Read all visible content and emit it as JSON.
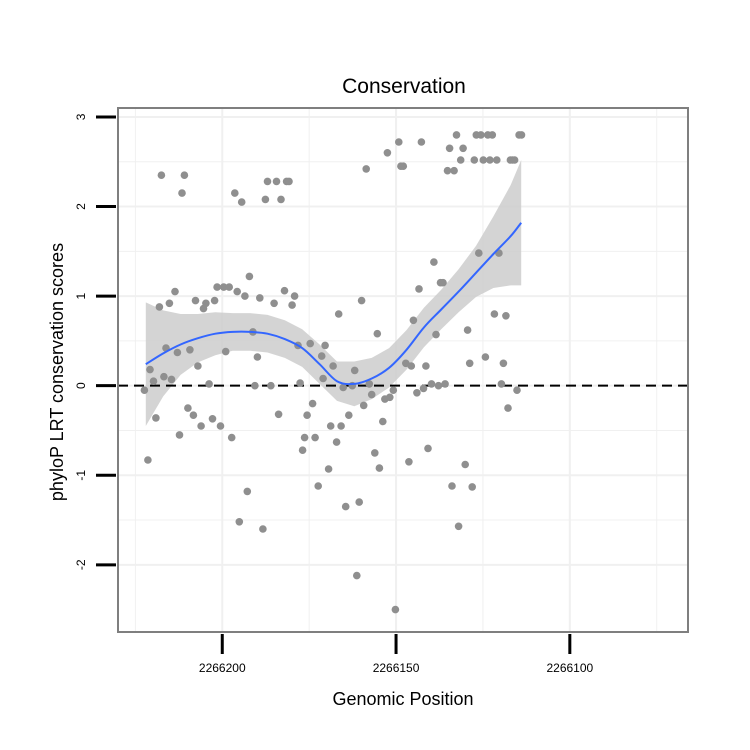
{
  "chart_data": {
    "type": "scatter",
    "title": "Conservation",
    "xlabel": "Genomic Position",
    "ylabel": "phyloP LRT conservation scores",
    "x_reversed": true,
    "xlim": [
      2266230,
      2266066
    ],
    "ylim": [
      -2.75,
      3.1
    ],
    "x_ticks": [
      2266200,
      2266150,
      2266100
    ],
    "x_tick_labels": [
      "2266200",
      "2266150",
      "2266100"
    ],
    "y_ticks": [
      -2,
      -1,
      0,
      1,
      2,
      3
    ],
    "y_tick_labels": [
      "-2",
      "-1",
      "0",
      "1",
      "2",
      "3"
    ],
    "grid": true,
    "reference_line": {
      "y": 0,
      "style": "dashed",
      "color": "#000000"
    },
    "colors": {
      "points": "#8f8f8f",
      "smooth": "#3366ff",
      "ribbon": "#cccccc",
      "grid": "#f0f0f0",
      "panel_border": "#7f7f7f",
      "axis_tick": "#000000"
    },
    "points": [
      {
        "x": 2266222.4,
        "y": -0.05
      },
      {
        "x": 2266221.4,
        "y": -0.83
      },
      {
        "x": 2266220.8,
        "y": 0.18
      },
      {
        "x": 2266219.8,
        "y": 0.05
      },
      {
        "x": 2266219.1,
        "y": -0.36
      },
      {
        "x": 2266218.1,
        "y": 0.88
      },
      {
        "x": 2266217.5,
        "y": 2.35
      },
      {
        "x": 2266216.8,
        "y": 0.1
      },
      {
        "x": 2266216.2,
        "y": 0.42
      },
      {
        "x": 2266215.2,
        "y": 0.92
      },
      {
        "x": 2266214.6,
        "y": 0.07
      },
      {
        "x": 2266213.6,
        "y": 1.05
      },
      {
        "x": 2266212.9,
        "y": 0.37
      },
      {
        "x": 2266212.3,
        "y": -0.55
      },
      {
        "x": 2266211.6,
        "y": 2.15
      },
      {
        "x": 2266210.9,
        "y": 2.35
      },
      {
        "x": 2266209.9,
        "y": -0.25
      },
      {
        "x": 2266209.3,
        "y": 0.4
      },
      {
        "x": 2266208.3,
        "y": -0.33
      },
      {
        "x": 2266207.7,
        "y": 0.95
      },
      {
        "x": 2266207,
        "y": 0.22
      },
      {
        "x": 2266206.1,
        "y": -0.45
      },
      {
        "x": 2266205.4,
        "y": 0.86
      },
      {
        "x": 2266204.7,
        "y": 0.92
      },
      {
        "x": 2266203.8,
        "y": 0.02
      },
      {
        "x": 2266202.8,
        "y": -0.37
      },
      {
        "x": 2266202.2,
        "y": 0.95
      },
      {
        "x": 2266201.5,
        "y": 1.1
      },
      {
        "x": 2266200.5,
        "y": -0.45
      },
      {
        "x": 2266199.6,
        "y": 1.1
      },
      {
        "x": 2266199,
        "y": 0.38
      },
      {
        "x": 2266198,
        "y": 1.1
      },
      {
        "x": 2266197.3,
        "y": -0.58
      },
      {
        "x": 2266196.4,
        "y": 2.15
      },
      {
        "x": 2266195.7,
        "y": 1.05
      },
      {
        "x": 2266195.1,
        "y": -1.52
      },
      {
        "x": 2266194.4,
        "y": 2.05
      },
      {
        "x": 2266193.5,
        "y": 1.0
      },
      {
        "x": 2266192.8,
        "y": -1.18
      },
      {
        "x": 2266192.2,
        "y": 1.22
      },
      {
        "x": 2266191.2,
        "y": 0.6
      },
      {
        "x": 2266190.6,
        "y": 0.0
      },
      {
        "x": 2266189.9,
        "y": 0.32
      },
      {
        "x": 2266189.2,
        "y": 0.98
      },
      {
        "x": 2266188.3,
        "y": -1.6
      },
      {
        "x": 2266187.6,
        "y": 2.08
      },
      {
        "x": 2266187,
        "y": 2.28
      },
      {
        "x": 2266186,
        "y": 0.0
      },
      {
        "x": 2266185.1,
        "y": 0.92
      },
      {
        "x": 2266184.4,
        "y": 2.28
      },
      {
        "x": 2266183.8,
        "y": -0.32
      },
      {
        "x": 2266183.1,
        "y": 2.08
      },
      {
        "x": 2266182.1,
        "y": 1.06
      },
      {
        "x": 2266181.5,
        "y": 2.28
      },
      {
        "x": 2266180.8,
        "y": 2.28
      },
      {
        "x": 2266179.9,
        "y": 0.9
      },
      {
        "x": 2266179.2,
        "y": 1.0
      },
      {
        "x": 2266178.2,
        "y": 0.45
      },
      {
        "x": 2266177.6,
        "y": 0.03
      },
      {
        "x": 2266176.9,
        "y": -0.72
      },
      {
        "x": 2266176.3,
        "y": -0.58
      },
      {
        "x": 2266175.6,
        "y": -0.33
      },
      {
        "x": 2266174.7,
        "y": 0.47
      },
      {
        "x": 2266174,
        "y": -0.2
      },
      {
        "x": 2266173.3,
        "y": -0.58
      },
      {
        "x": 2266172.4,
        "y": -1.12
      },
      {
        "x": 2266171.4,
        "y": 0.33
      },
      {
        "x": 2266171,
        "y": 0.08
      },
      {
        "x": 2266170.4,
        "y": 0.45
      },
      {
        "x": 2266169.4,
        "y": -0.93
      },
      {
        "x": 2266168.8,
        "y": -0.45
      },
      {
        "x": 2266168.1,
        "y": 0.22
      },
      {
        "x": 2266167.1,
        "y": -0.63
      },
      {
        "x": 2266166.5,
        "y": 0.8
      },
      {
        "x": 2266165.8,
        "y": -0.45
      },
      {
        "x": 2266165.2,
        "y": -0.02
      },
      {
        "x": 2266164.5,
        "y": -1.35
      },
      {
        "x": 2266163.6,
        "y": -0.33
      },
      {
        "x": 2266162.6,
        "y": 0.0
      },
      {
        "x": 2266161.9,
        "y": 0.17
      },
      {
        "x": 2266161.3,
        "y": -2.12
      },
      {
        "x": 2266160.6,
        "y": -1.3
      },
      {
        "x": 2266159.9,
        "y": 0.95
      },
      {
        "x": 2266159.3,
        "y": -0.22
      },
      {
        "x": 2266158.6,
        "y": 2.42
      },
      {
        "x": 2266157.7,
        "y": 0.02
      },
      {
        "x": 2266157,
        "y": -0.1
      },
      {
        "x": 2266156.1,
        "y": -0.75
      },
      {
        "x": 2266155.4,
        "y": 0.58
      },
      {
        "x": 2266154.8,
        "y": -0.92
      },
      {
        "x": 2266153.8,
        "y": -0.4
      },
      {
        "x": 2266153.2,
        "y": -0.15
      },
      {
        "x": 2266152.5,
        "y": 2.6
      },
      {
        "x": 2266151.8,
        "y": -0.13
      },
      {
        "x": 2266150.8,
        "y": -0.05
      },
      {
        "x": 2266150.2,
        "y": -2.5
      },
      {
        "x": 2266149.2,
        "y": 2.72
      },
      {
        "x": 2266148.6,
        "y": 2.45
      },
      {
        "x": 2266147.9,
        "y": 2.45
      },
      {
        "x": 2266147.2,
        "y": 0.25
      },
      {
        "x": 2266146.3,
        "y": -0.85
      },
      {
        "x": 2266145.6,
        "y": 0.22
      },
      {
        "x": 2266145,
        "y": 0.73
      },
      {
        "x": 2266144,
        "y": -0.08
      },
      {
        "x": 2266143.4,
        "y": 1.08
      },
      {
        "x": 2266142.7,
        "y": 2.72
      },
      {
        "x": 2266142.1,
        "y": -0.03
      },
      {
        "x": 2266141.4,
        "y": 0.22
      },
      {
        "x": 2266140.8,
        "y": -0.7
      },
      {
        "x": 2266139.8,
        "y": 0.02
      },
      {
        "x": 2266139.1,
        "y": 1.38
      },
      {
        "x": 2266138.5,
        "y": 0.57
      },
      {
        "x": 2266137.8,
        "y": 0.0
      },
      {
        "x": 2266137.2,
        "y": 1.15
      },
      {
        "x": 2266136.5,
        "y": 1.15
      },
      {
        "x": 2266135.9,
        "y": 0.02
      },
      {
        "x": 2266135.2,
        "y": 2.4
      },
      {
        "x": 2266134.6,
        "y": 2.65
      },
      {
        "x": 2266133.9,
        "y": -1.12
      },
      {
        "x": 2266133.3,
        "y": 2.4
      },
      {
        "x": 2266132.6,
        "y": 2.8
      },
      {
        "x": 2266132,
        "y": -1.57
      },
      {
        "x": 2266131.4,
        "y": 2.52
      },
      {
        "x": 2266130.7,
        "y": 2.65
      },
      {
        "x": 2266130.1,
        "y": -0.88
      },
      {
        "x": 2266129.4,
        "y": 0.62
      },
      {
        "x": 2266128.8,
        "y": 0.25
      },
      {
        "x": 2266128.1,
        "y": -1.13
      },
      {
        "x": 2266127.5,
        "y": 2.52
      },
      {
        "x": 2266126.9,
        "y": 2.8
      },
      {
        "x": 2266126.2,
        "y": 1.48
      },
      {
        "x": 2266125.6,
        "y": 2.8
      },
      {
        "x": 2266124.9,
        "y": 2.52
      },
      {
        "x": 2266124.3,
        "y": 0.32
      },
      {
        "x": 2266123.6,
        "y": 2.8
      },
      {
        "x": 2266123,
        "y": 2.52
      },
      {
        "x": 2266122.3,
        "y": 2.8
      },
      {
        "x": 2266121.7,
        "y": 0.8
      },
      {
        "x": 2266121,
        "y": 2.52
      },
      {
        "x": 2266120.4,
        "y": 1.48
      },
      {
        "x": 2266119.7,
        "y": 0.02
      },
      {
        "x": 2266119.1,
        "y": 0.25
      },
      {
        "x": 2266118.4,
        "y": 0.78
      },
      {
        "x": 2266117.8,
        "y": -0.25
      },
      {
        "x": 2266117.1,
        "y": 2.52
      },
      {
        "x": 2266116.5,
        "y": 2.52
      },
      {
        "x": 2266115.9,
        "y": 2.52
      },
      {
        "x": 2266115.2,
        "y": -0.05
      },
      {
        "x": 2266114.6,
        "y": 2.8
      },
      {
        "x": 2266113.9,
        "y": 2.8
      }
    ],
    "smooth": {
      "method": "loess",
      "x": [
        2266222,
        2266217,
        2266212,
        2266207,
        2266202,
        2266197,
        2266192,
        2266187,
        2266182,
        2266177,
        2266172,
        2266167,
        2266162,
        2266157,
        2266152,
        2266147,
        2266142,
        2266137,
        2266132,
        2266127,
        2266122,
        2266117,
        2266114
      ],
      "fit": [
        0.24,
        0.36,
        0.46,
        0.53,
        0.58,
        0.6,
        0.6,
        0.58,
        0.52,
        0.42,
        0.24,
        0.05,
        0.02,
        0.08,
        0.2,
        0.4,
        0.65,
        0.85,
        1.05,
        1.26,
        1.47,
        1.67,
        1.82
      ],
      "lower": [
        -0.45,
        -0.12,
        0.12,
        0.26,
        0.34,
        0.39,
        0.39,
        0.37,
        0.31,
        0.21,
        0.02,
        -0.17,
        -0.23,
        -0.15,
        -0.02,
        0.18,
        0.43,
        0.63,
        0.82,
        0.99,
        1.09,
        1.12,
        1.12
      ],
      "upper": [
        0.93,
        0.84,
        0.8,
        0.8,
        0.82,
        0.81,
        0.81,
        0.79,
        0.73,
        0.63,
        0.46,
        0.27,
        0.27,
        0.31,
        0.42,
        0.62,
        0.87,
        1.07,
        1.3,
        1.56,
        1.89,
        2.24,
        2.52
      ]
    }
  }
}
